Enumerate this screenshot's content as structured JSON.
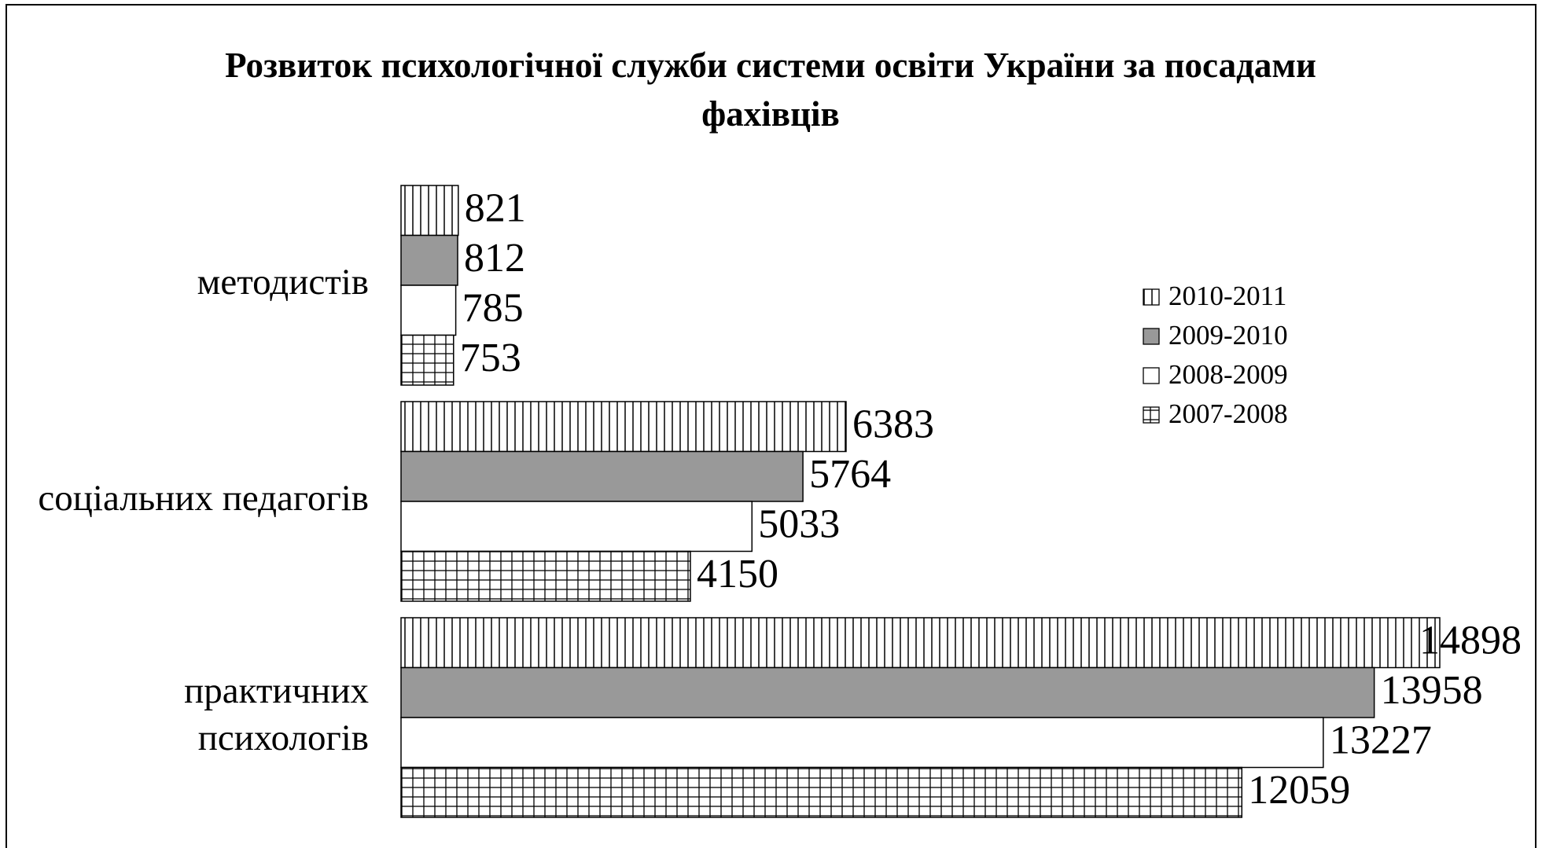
{
  "chart_data": {
    "type": "hbar",
    "title": "Розвиток психологічної служби системи освіти України за посадами фахівців",
    "categories": [
      "методистів",
      "соціальних педагогів",
      "практичних\nпсихологів"
    ],
    "series": [
      {
        "name": "2010-2011",
        "color": "#ffffff",
        "pattern": "vertical",
        "values": [
          821,
          6383,
          14898
        ]
      },
      {
        "name": "2009-2010",
        "color": "#999999",
        "pattern": "solid",
        "values": [
          812,
          5764,
          13958
        ]
      },
      {
        "name": "2008-2009",
        "color": "#ffffff",
        "pattern": "solid",
        "values": [
          785,
          5033,
          13227
        ]
      },
      {
        "name": "2007-2008",
        "color": "#ffffff",
        "pattern": "grid",
        "values": [
          753,
          4150,
          12059
        ]
      }
    ],
    "legend": "right"
  }
}
